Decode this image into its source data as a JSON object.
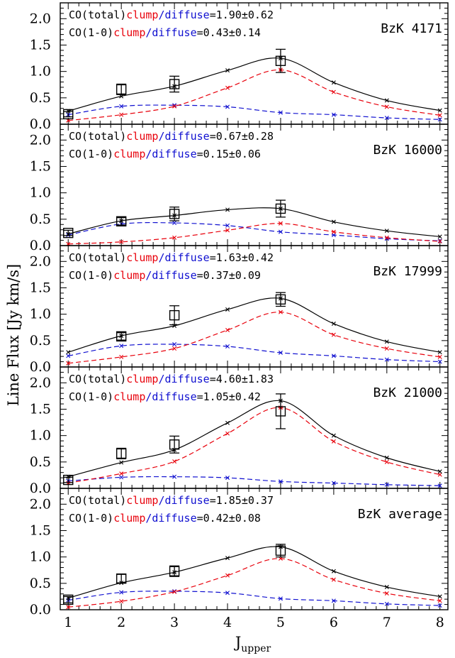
{
  "colors": {
    "total": "#000000",
    "clump": "#e8000b",
    "diffuse": "#1010d0"
  },
  "chart_data": {
    "type": "line",
    "x": [
      1,
      2,
      3,
      4,
      5,
      6,
      7,
      8
    ],
    "xlim": [
      0.85,
      8.15
    ],
    "ylim": [
      0,
      2.3
    ],
    "xticks": [
      "1",
      "2",
      "3",
      "4",
      "5",
      "6",
      "7",
      "8"
    ],
    "yticks": [
      "0.0",
      "0.5",
      "1.0",
      "1.5",
      "2.0"
    ],
    "xlabel_main": "J",
    "xlabel_sub": "upper",
    "ylabel": "Line Flux [Jy km/s]",
    "annotation_labels": {
      "total": "CO(total)",
      "line10": "CO(1-0)",
      "clump": "clump",
      "slash": "/",
      "diffuse": "diffuse"
    },
    "panels": [
      {
        "title": "BzK 4171",
        "ratio_total": "=1.90±0.62",
        "ratio_10": "=0.43±0.14",
        "total": [
          0.25,
          0.53,
          0.72,
          1.02,
          1.25,
          0.79,
          0.45,
          0.26
        ],
        "clump": [
          0.07,
          0.18,
          0.34,
          0.69,
          1.03,
          0.61,
          0.33,
          0.17
        ],
        "diffuse": [
          0.18,
          0.34,
          0.36,
          0.33,
          0.22,
          0.18,
          0.12,
          0.09
        ],
        "obs_x": [
          1,
          2,
          3,
          5
        ],
        "obs_y": [
          0.19,
          0.66,
          0.76,
          1.2
        ],
        "obs_err": [
          0.05,
          0.1,
          0.15,
          0.22
        ]
      },
      {
        "title": "BzK 16000",
        "ratio_total": "=0.67±0.28",
        "ratio_10": "=0.15±0.06",
        "total": [
          0.22,
          0.47,
          0.57,
          0.68,
          0.7,
          0.45,
          0.28,
          0.17
        ],
        "clump": [
          0.03,
          0.07,
          0.15,
          0.29,
          0.42,
          0.26,
          0.15,
          0.08
        ],
        "diffuse": [
          0.2,
          0.41,
          0.43,
          0.38,
          0.26,
          0.2,
          0.13,
          0.09
        ],
        "obs_x": [
          1,
          2,
          3,
          5
        ],
        "obs_y": [
          0.24,
          0.46,
          0.6,
          0.7
        ],
        "obs_err": [
          0.05,
          0.07,
          0.13,
          0.16
        ]
      },
      {
        "title": "BzK 17999",
        "ratio_total": "=1.63±0.42",
        "ratio_10": "=0.37±0.09",
        "total": [
          0.28,
          0.59,
          0.78,
          1.09,
          1.3,
          0.82,
          0.48,
          0.28
        ],
        "clump": [
          0.07,
          0.19,
          0.35,
          0.7,
          1.04,
          0.61,
          0.35,
          0.19
        ],
        "diffuse": [
          0.21,
          0.4,
          0.43,
          0.39,
          0.27,
          0.21,
          0.14,
          0.1
        ],
        "obs_x": [
          2,
          3,
          5
        ],
        "obs_y": [
          0.58,
          0.98,
          1.28
        ],
        "obs_err": [
          0.07,
          0.18,
          0.13
        ]
      },
      {
        "title": "BzK 21000",
        "ratio_total": "=4.60±1.83",
        "ratio_10": "=1.05±0.42",
        "total": [
          0.22,
          0.49,
          0.73,
          1.24,
          1.66,
          1.0,
          0.58,
          0.32
        ],
        "clump": [
          0.1,
          0.28,
          0.51,
          1.04,
          1.53,
          0.89,
          0.5,
          0.26
        ],
        "diffuse": [
          0.14,
          0.21,
          0.22,
          0.2,
          0.13,
          0.1,
          0.07,
          0.05
        ],
        "obs_x": [
          1,
          2,
          3,
          5
        ],
        "obs_y": [
          0.16,
          0.66,
          0.83,
          1.46
        ],
        "obs_err": [
          0.05,
          0.1,
          0.16,
          0.33
        ]
      },
      {
        "title": "BzK average",
        "ratio_total": "=1.85±0.37",
        "ratio_10": "=0.42±0.08",
        "total": [
          0.22,
          0.51,
          0.71,
          0.98,
          1.19,
          0.73,
          0.43,
          0.25
        ],
        "clump": [
          0.05,
          0.16,
          0.34,
          0.65,
          0.97,
          0.57,
          0.31,
          0.17
        ],
        "diffuse": [
          0.18,
          0.33,
          0.35,
          0.32,
          0.21,
          0.17,
          0.11,
          0.08
        ],
        "obs_x": [
          1,
          2,
          3,
          5
        ],
        "obs_y": [
          0.19,
          0.59,
          0.73,
          1.12
        ],
        "obs_err": [
          0.06,
          0.08,
          0.1,
          0.12
        ]
      }
    ]
  }
}
